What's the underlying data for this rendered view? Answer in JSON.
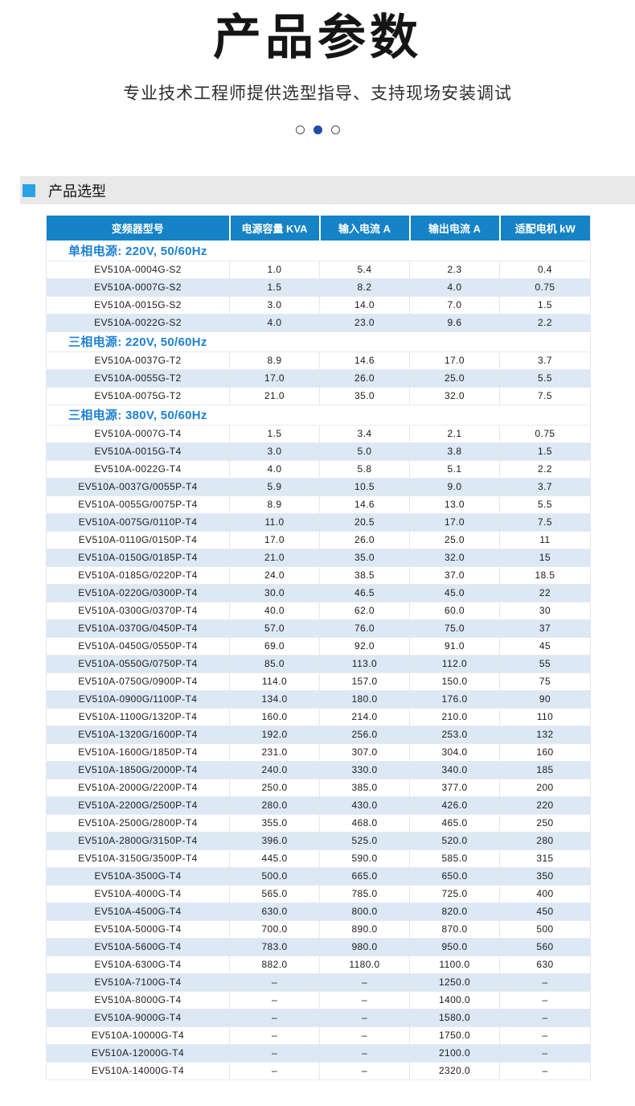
{
  "hero": {
    "title": "产品参数",
    "subtitle": "专业技术工程师提供选型指导、支持现场安装调试",
    "dots": [
      "inactive",
      "active",
      "inactive"
    ]
  },
  "section_bar": {
    "label": "产品选型"
  },
  "colors": {
    "table_header_blue": "#1583c5",
    "alt_row_blue": "#dce8f4",
    "section_text_blue": "#1f82d2",
    "accent_square_blue": "#29a3e3",
    "active_dot_navy": "#1d4fa0"
  },
  "table": {
    "headers": [
      "变频器型号",
      "电源容量 KVA",
      "输入电流 A",
      "输出电流 A",
      "适配电机 kW"
    ],
    "sections": [
      {
        "title": "单相电源: 220V, 50/60Hz",
        "rows": [
          [
            "EV510A-0004G-S2",
            "1.0",
            "5.4",
            "2.3",
            "0.4"
          ],
          [
            "EV510A-0007G-S2",
            "1.5",
            "8.2",
            "4.0",
            "0.75"
          ],
          [
            "EV510A-0015G-S2",
            "3.0",
            "14.0",
            "7.0",
            "1.5"
          ],
          [
            "EV510A-0022G-S2",
            "4.0",
            "23.0",
            "9.6",
            "2.2"
          ]
        ]
      },
      {
        "title": "三相电源: 220V, 50/60Hz",
        "rows": [
          [
            "EV510A-0037G-T2",
            "8.9",
            "14.6",
            "17.0",
            "3.7"
          ],
          [
            "EV510A-0055G-T2",
            "17.0",
            "26.0",
            "25.0",
            "5.5"
          ],
          [
            "EV510A-0075G-T2",
            "21.0",
            "35.0",
            "32.0",
            "7.5"
          ]
        ]
      },
      {
        "title": "三相电源: 380V, 50/60Hz",
        "rows": [
          [
            "EV510A-0007G-T4",
            "1.5",
            "3.4",
            "2.1",
            "0.75"
          ],
          [
            "EV510A-0015G-T4",
            "3.0",
            "5.0",
            "3.8",
            "1.5"
          ],
          [
            "EV510A-0022G-T4",
            "4.0",
            "5.8",
            "5.1",
            "2.2"
          ],
          [
            "EV510A-0037G/0055P-T4",
            "5.9",
            "10.5",
            "9.0",
            "3.7"
          ],
          [
            "EV510A-0055G/0075P-T4",
            "8.9",
            "14.6",
            "13.0",
            "5.5"
          ],
          [
            "EV510A-0075G/0110P-T4",
            "11.0",
            "20.5",
            "17.0",
            "7.5"
          ],
          [
            "EV510A-0110G/0150P-T4",
            "17.0",
            "26.0",
            "25.0",
            "11"
          ],
          [
            "EV510A-0150G/0185P-T4",
            "21.0",
            "35.0",
            "32.0",
            "15"
          ],
          [
            "EV510A-0185G/0220P-T4",
            "24.0",
            "38.5",
            "37.0",
            "18.5"
          ],
          [
            "EV510A-0220G/0300P-T4",
            "30.0",
            "46.5",
            "45.0",
            "22"
          ],
          [
            "EV510A-0300G/0370P-T4",
            "40.0",
            "62.0",
            "60.0",
            "30"
          ],
          [
            "EV510A-0370G/0450P-T4",
            "57.0",
            "76.0",
            "75.0",
            "37"
          ],
          [
            "EV510A-0450G/0550P-T4",
            "69.0",
            "92.0",
            "91.0",
            "45"
          ],
          [
            "EV510A-0550G/0750P-T4",
            "85.0",
            "113.0",
            "112.0",
            "55"
          ],
          [
            "EV510A-0750G/0900P-T4",
            "114.0",
            "157.0",
            "150.0",
            "75"
          ],
          [
            "EV510A-0900G/1100P-T4",
            "134.0",
            "180.0",
            "176.0",
            "90"
          ],
          [
            "EV510A-1100G/1320P-T4",
            "160.0",
            "214.0",
            "210.0",
            "110"
          ],
          [
            "EV510A-1320G/1600P-T4",
            "192.0",
            "256.0",
            "253.0",
            "132"
          ],
          [
            "EV510A-1600G/1850P-T4",
            "231.0",
            "307.0",
            "304.0",
            "160"
          ],
          [
            "EV510A-1850G/2000P-T4",
            "240.0",
            "330.0",
            "340.0",
            "185"
          ],
          [
            "EV510A-2000G/2200P-T4",
            "250.0",
            "385.0",
            "377.0",
            "200"
          ],
          [
            "EV510A-2200G/2500P-T4",
            "280.0",
            "430.0",
            "426.0",
            "220"
          ],
          [
            "EV510A-2500G/2800P-T4",
            "355.0",
            "468.0",
            "465.0",
            "250"
          ],
          [
            "EV510A-2800G/3150P-T4",
            "396.0",
            "525.0",
            "520.0",
            "280"
          ],
          [
            "EV510A-3150G/3500P-T4",
            "445.0",
            "590.0",
            "585.0",
            "315"
          ],
          [
            "EV510A-3500G-T4",
            "500.0",
            "665.0",
            "650.0",
            "350"
          ],
          [
            "EV510A-4000G-T4",
            "565.0",
            "785.0",
            "725.0",
            "400"
          ],
          [
            "EV510A-4500G-T4",
            "630.0",
            "800.0",
            "820.0",
            "450"
          ],
          [
            "EV510A-5000G-T4",
            "700.0",
            "890.0",
            "870.0",
            "500"
          ],
          [
            "EV510A-5600G-T4",
            "783.0",
            "980.0",
            "950.0",
            "560"
          ],
          [
            "EV510A-6300G-T4",
            "882.0",
            "1180.0",
            "1100.0",
            "630"
          ],
          [
            "EV510A-7100G-T4",
            "–",
            "–",
            "1250.0",
            "–"
          ],
          [
            "EV510A-8000G-T4",
            "–",
            "–",
            "1400.0",
            "–"
          ],
          [
            "EV510A-9000G-T4",
            "–",
            "–",
            "1580.0",
            "–"
          ],
          [
            "EV510A-10000G-T4",
            "–",
            "–",
            "1750.0",
            "–"
          ],
          [
            "EV510A-12000G-T4",
            "–",
            "–",
            "2100.0",
            "–"
          ],
          [
            "EV510A-14000G-T4",
            "–",
            "–",
            "2320.0",
            "–"
          ]
        ]
      }
    ]
  }
}
